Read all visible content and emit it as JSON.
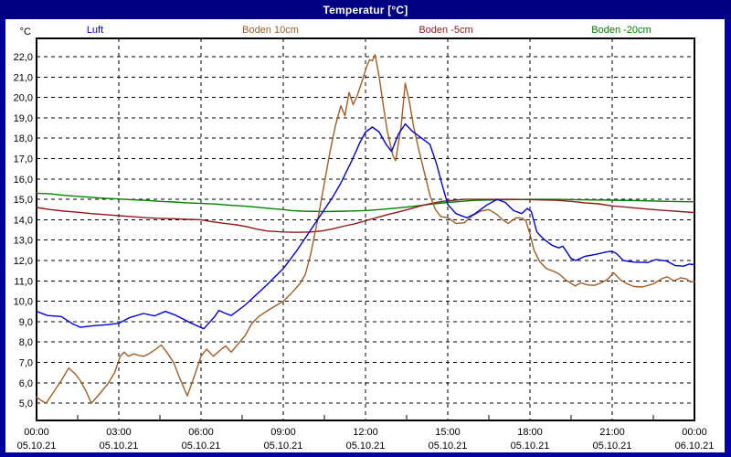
{
  "window": {
    "title": "Temperatur [°C]"
  },
  "colors": {
    "titlebar_bg": "#000080",
    "window_border": "#0000a0",
    "plot_bg": "#ffffff",
    "grid": "#000000",
    "frame": "#000000",
    "luft": "#0000cc",
    "boden10": "#9e5f2a",
    "boden5": "#8b1a1a",
    "boden20": "#008000"
  },
  "chart_data": {
    "type": "line",
    "title": "Temperatur [°C]",
    "ylabel": "°C",
    "grid": "dashed",
    "legend_position": "top",
    "xlim_hours": [
      0,
      24
    ],
    "ylim": [
      4.15,
      22.9
    ],
    "yticks": [
      {
        "v": 22,
        "label": "22,0"
      },
      {
        "v": 21,
        "label": "21,0"
      },
      {
        "v": 20,
        "label": "20,0"
      },
      {
        "v": 19,
        "label": "19,0"
      },
      {
        "v": 18,
        "label": "18,0"
      },
      {
        "v": 17,
        "label": "17,0"
      },
      {
        "v": 16,
        "label": "16,0"
      },
      {
        "v": 15,
        "label": "15,0"
      },
      {
        "v": 14,
        "label": "14,0"
      },
      {
        "v": 13,
        "label": "13,0"
      },
      {
        "v": 12,
        "label": "12,0"
      },
      {
        "v": 11,
        "label": "11,0"
      },
      {
        "v": 10,
        "label": "10,0"
      },
      {
        "v": 9,
        "label": "9,0"
      },
      {
        "v": 8,
        "label": "8,0"
      },
      {
        "v": 7,
        "label": "7,0"
      },
      {
        "v": 6,
        "label": "6,0"
      },
      {
        "v": 5,
        "label": "5,0"
      }
    ],
    "xticks": [
      {
        "h": 0,
        "time": "00:00",
        "date": "05.10.21"
      },
      {
        "h": 3,
        "time": "03:00",
        "date": "05.10.21"
      },
      {
        "h": 6,
        "time": "06:00",
        "date": "05.10.21"
      },
      {
        "h": 9,
        "time": "09:00",
        "date": "05.10.21"
      },
      {
        "h": 12,
        "time": "12:00",
        "date": "05.10.21"
      },
      {
        "h": 15,
        "time": "15:00",
        "date": "05.10.21"
      },
      {
        "h": 18,
        "time": "18:00",
        "date": "05.10.21"
      },
      {
        "h": 21,
        "time": "21:00",
        "date": "05.10.21"
      },
      {
        "h": 24,
        "time": "00:00",
        "date": "06.10.21"
      }
    ],
    "series": [
      {
        "name": "Luft",
        "color": "#0000cc",
        "points": [
          [
            0,
            9.5
          ],
          [
            0.4,
            9.3
          ],
          [
            0.9,
            9.25
          ],
          [
            1.3,
            8.9
          ],
          [
            1.6,
            8.72
          ],
          [
            2.1,
            8.8
          ],
          [
            2.6,
            8.85
          ],
          [
            3.0,
            8.92
          ],
          [
            3.4,
            9.2
          ],
          [
            3.9,
            9.4
          ],
          [
            4.3,
            9.28
          ],
          [
            4.7,
            9.5
          ],
          [
            5.1,
            9.3
          ],
          [
            5.6,
            8.95
          ],
          [
            6.1,
            8.65
          ],
          [
            6.5,
            9.25
          ],
          [
            6.65,
            9.55
          ],
          [
            6.9,
            9.4
          ],
          [
            7.1,
            9.3
          ],
          [
            7.35,
            9.55
          ],
          [
            7.6,
            9.8
          ],
          [
            8.0,
            10.3
          ],
          [
            8.4,
            10.8
          ],
          [
            8.7,
            11.2
          ],
          [
            9.0,
            11.6
          ],
          [
            9.5,
            12.5
          ],
          [
            10.0,
            13.5
          ],
          [
            10.4,
            14.3
          ],
          [
            10.8,
            15.1
          ],
          [
            11.1,
            15.8
          ],
          [
            11.5,
            16.9
          ],
          [
            11.8,
            17.8
          ],
          [
            12.0,
            18.3
          ],
          [
            12.25,
            18.55
          ],
          [
            12.5,
            18.3
          ],
          [
            12.75,
            17.7
          ],
          [
            12.95,
            17.35
          ],
          [
            13.2,
            18.2
          ],
          [
            13.45,
            18.7
          ],
          [
            13.7,
            18.35
          ],
          [
            14.0,
            18.05
          ],
          [
            14.35,
            17.7
          ],
          [
            14.6,
            16.7
          ],
          [
            14.8,
            15.7
          ],
          [
            15.0,
            14.75
          ],
          [
            15.3,
            14.3
          ],
          [
            15.7,
            14.1
          ],
          [
            16.0,
            14.3
          ],
          [
            16.4,
            14.7
          ],
          [
            16.8,
            15.0
          ],
          [
            17.1,
            14.85
          ],
          [
            17.4,
            14.45
          ],
          [
            17.7,
            14.3
          ],
          [
            17.9,
            14.55
          ],
          [
            18.05,
            14.4
          ],
          [
            18.25,
            13.4
          ],
          [
            18.5,
            13.05
          ],
          [
            18.8,
            12.75
          ],
          [
            19.05,
            12.62
          ],
          [
            19.2,
            12.7
          ],
          [
            19.5,
            12.1
          ],
          [
            19.67,
            12.0
          ],
          [
            20.0,
            12.2
          ],
          [
            20.4,
            12.3
          ],
          [
            20.8,
            12.42
          ],
          [
            21.0,
            12.45
          ],
          [
            21.15,
            12.35
          ],
          [
            21.4,
            12.0
          ],
          [
            21.8,
            11.92
          ],
          [
            22.3,
            11.9
          ],
          [
            22.6,
            12.05
          ],
          [
            23.0,
            11.97
          ],
          [
            23.3,
            11.75
          ],
          [
            23.6,
            11.72
          ],
          [
            23.8,
            11.82
          ],
          [
            24,
            11.8
          ]
        ]
      },
      {
        "name": "Boden 10cm",
        "color": "#9e5f2a",
        "points": [
          [
            0,
            5.3
          ],
          [
            0.2,
            5.1
          ],
          [
            0.35,
            5.0
          ],
          [
            0.6,
            5.5
          ],
          [
            0.9,
            6.1
          ],
          [
            1.17,
            6.72
          ],
          [
            1.4,
            6.45
          ],
          [
            1.6,
            6.1
          ],
          [
            1.8,
            5.6
          ],
          [
            2.0,
            5.0
          ],
          [
            2.3,
            5.45
          ],
          [
            2.6,
            5.95
          ],
          [
            2.85,
            6.5
          ],
          [
            3.05,
            7.3
          ],
          [
            3.2,
            7.5
          ],
          [
            3.35,
            7.3
          ],
          [
            3.55,
            7.42
          ],
          [
            3.7,
            7.35
          ],
          [
            3.9,
            7.3
          ],
          [
            4.1,
            7.42
          ],
          [
            4.3,
            7.6
          ],
          [
            4.55,
            7.85
          ],
          [
            4.75,
            7.5
          ],
          [
            5.0,
            7.0
          ],
          [
            5.2,
            6.3
          ],
          [
            5.5,
            5.35
          ],
          [
            5.75,
            6.3
          ],
          [
            6.0,
            7.3
          ],
          [
            6.2,
            7.65
          ],
          [
            6.45,
            7.3
          ],
          [
            6.7,
            7.6
          ],
          [
            6.9,
            7.8
          ],
          [
            7.1,
            7.5
          ],
          [
            7.35,
            7.9
          ],
          [
            7.6,
            8.3
          ],
          [
            7.85,
            8.9
          ],
          [
            8.1,
            9.25
          ],
          [
            8.5,
            9.6
          ],
          [
            9.0,
            10.0
          ],
          [
            9.3,
            10.4
          ],
          [
            9.6,
            10.85
          ],
          [
            9.8,
            11.3
          ],
          [
            10.0,
            12.3
          ],
          [
            10.15,
            13.3
          ],
          [
            10.3,
            14.3
          ],
          [
            10.5,
            15.8
          ],
          [
            10.7,
            17.3
          ],
          [
            10.9,
            18.6
          ],
          [
            11.0,
            19.1
          ],
          [
            11.1,
            19.6
          ],
          [
            11.25,
            19.1
          ],
          [
            11.4,
            20.25
          ],
          [
            11.55,
            19.65
          ],
          [
            11.7,
            20.1
          ],
          [
            11.9,
            20.9
          ],
          [
            12.05,
            21.55
          ],
          [
            12.15,
            21.85
          ],
          [
            12.25,
            21.8
          ],
          [
            12.35,
            22.1
          ],
          [
            12.5,
            21.0
          ],
          [
            12.65,
            19.6
          ],
          [
            12.8,
            18.3
          ],
          [
            13.0,
            17.15
          ],
          [
            13.1,
            16.9
          ],
          [
            13.3,
            18.6
          ],
          [
            13.45,
            20.7
          ],
          [
            13.6,
            19.8
          ],
          [
            13.75,
            18.6
          ],
          [
            13.95,
            17.4
          ],
          [
            14.15,
            16.3
          ],
          [
            14.35,
            15.2
          ],
          [
            14.55,
            14.5
          ],
          [
            14.75,
            14.15
          ],
          [
            15.0,
            14.1
          ],
          [
            15.3,
            13.82
          ],
          [
            15.6,
            13.85
          ],
          [
            15.9,
            14.2
          ],
          [
            16.2,
            14.42
          ],
          [
            16.5,
            14.5
          ],
          [
            16.8,
            14.25
          ],
          [
            17.0,
            14.0
          ],
          [
            17.2,
            13.82
          ],
          [
            17.5,
            14.1
          ],
          [
            17.7,
            14.08
          ],
          [
            17.85,
            13.95
          ],
          [
            18.0,
            13.3
          ],
          [
            18.15,
            12.5
          ],
          [
            18.35,
            11.95
          ],
          [
            18.6,
            11.6
          ],
          [
            18.9,
            11.45
          ],
          [
            19.1,
            11.3
          ],
          [
            19.3,
            11.05
          ],
          [
            19.65,
            10.75
          ],
          [
            19.85,
            10.9
          ],
          [
            20.1,
            10.8
          ],
          [
            20.35,
            10.78
          ],
          [
            20.6,
            10.9
          ],
          [
            20.85,
            11.1
          ],
          [
            21.05,
            11.4
          ],
          [
            21.3,
            11.05
          ],
          [
            21.55,
            10.85
          ],
          [
            21.8,
            10.72
          ],
          [
            22.1,
            10.7
          ],
          [
            22.5,
            10.85
          ],
          [
            22.8,
            11.1
          ],
          [
            23.0,
            11.2
          ],
          [
            23.25,
            11.0
          ],
          [
            23.5,
            11.15
          ],
          [
            23.7,
            11.1
          ],
          [
            23.85,
            10.95
          ],
          [
            24,
            10.97
          ]
        ]
      },
      {
        "name": "Boden -5cm",
        "color": "#8b1a1a",
        "points": [
          [
            0,
            14.6
          ],
          [
            0.5,
            14.5
          ],
          [
            1.0,
            14.42
          ],
          [
            1.5,
            14.37
          ],
          [
            2.0,
            14.3
          ],
          [
            2.5,
            14.25
          ],
          [
            3.0,
            14.2
          ],
          [
            3.5,
            14.15
          ],
          [
            4.0,
            14.1
          ],
          [
            4.5,
            14.07
          ],
          [
            5.0,
            14.05
          ],
          [
            5.5,
            14.02
          ],
          [
            6.0,
            14.0
          ],
          [
            6.4,
            13.9
          ],
          [
            6.8,
            13.83
          ],
          [
            7.3,
            13.75
          ],
          [
            7.7,
            13.65
          ],
          [
            8.0,
            13.55
          ],
          [
            8.4,
            13.45
          ],
          [
            9.0,
            13.4
          ],
          [
            9.5,
            13.38
          ],
          [
            10.0,
            13.4
          ],
          [
            10.4,
            13.45
          ],
          [
            10.8,
            13.55
          ],
          [
            11.2,
            13.68
          ],
          [
            11.6,
            13.8
          ],
          [
            12.0,
            13.95
          ],
          [
            12.4,
            14.1
          ],
          [
            12.8,
            14.25
          ],
          [
            13.2,
            14.38
          ],
          [
            13.6,
            14.52
          ],
          [
            14.0,
            14.68
          ],
          [
            14.4,
            14.8
          ],
          [
            14.8,
            14.9
          ],
          [
            15.2,
            14.95
          ],
          [
            15.6,
            15.0
          ],
          [
            16.5,
            15.0
          ],
          [
            17.5,
            15.0
          ],
          [
            18.5,
            14.97
          ],
          [
            19.0,
            14.95
          ],
          [
            19.5,
            14.9
          ],
          [
            20.0,
            14.83
          ],
          [
            20.5,
            14.78
          ],
          [
            21.0,
            14.68
          ],
          [
            21.5,
            14.62
          ],
          [
            22.0,
            14.55
          ],
          [
            22.5,
            14.5
          ],
          [
            23.0,
            14.45
          ],
          [
            23.5,
            14.4
          ],
          [
            24,
            14.35
          ]
        ]
      },
      {
        "name": "Boden -20cm",
        "color": "#008000",
        "points": [
          [
            0,
            15.3
          ],
          [
            0.5,
            15.27
          ],
          [
            1.0,
            15.2
          ],
          [
            1.5,
            15.15
          ],
          [
            2.0,
            15.1
          ],
          [
            2.5,
            15.05
          ],
          [
            3.0,
            15.02
          ],
          [
            3.5,
            14.98
          ],
          [
            4.0,
            14.95
          ],
          [
            4.5,
            14.9
          ],
          [
            5.0,
            14.87
          ],
          [
            5.5,
            14.83
          ],
          [
            6.0,
            14.8
          ],
          [
            6.5,
            14.77
          ],
          [
            7.0,
            14.72
          ],
          [
            7.5,
            14.68
          ],
          [
            8.0,
            14.62
          ],
          [
            8.5,
            14.55
          ],
          [
            9.0,
            14.5
          ],
          [
            9.3,
            14.45
          ],
          [
            9.7,
            14.42
          ],
          [
            10.5,
            14.4
          ],
          [
            11.3,
            14.42
          ],
          [
            12.0,
            14.45
          ],
          [
            12.5,
            14.5
          ],
          [
            13.0,
            14.55
          ],
          [
            13.5,
            14.62
          ],
          [
            14.0,
            14.7
          ],
          [
            14.5,
            14.78
          ],
          [
            15.0,
            14.85
          ],
          [
            15.5,
            14.9
          ],
          [
            16.0,
            14.95
          ],
          [
            17.0,
            14.98
          ],
          [
            18.0,
            15.0
          ],
          [
            19.0,
            15.0
          ],
          [
            19.8,
            14.98
          ],
          [
            21.0,
            14.96
          ],
          [
            22.0,
            14.94
          ],
          [
            23.0,
            14.9
          ],
          [
            24,
            14.88
          ]
        ]
      }
    ]
  }
}
